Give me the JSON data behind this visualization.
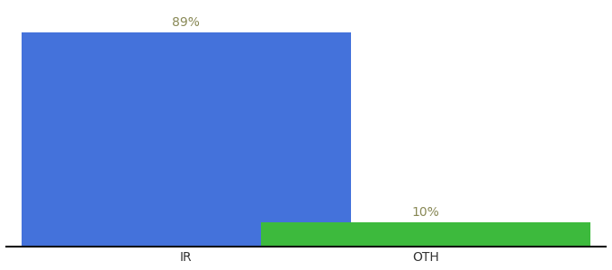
{
  "categories": [
    "IR",
    "OTH"
  ],
  "values": [
    89,
    10
  ],
  "bar_colors": [
    "#4472db",
    "#3dba3d"
  ],
  "labels": [
    "89%",
    "10%"
  ],
  "background_color": "#ffffff",
  "bar_width": 0.55,
  "x_positions": [
    0.3,
    0.7
  ],
  "xlim": [
    0.0,
    1.0
  ],
  "ylim": [
    0,
    100
  ],
  "label_fontsize": 10,
  "tick_fontsize": 10,
  "label_color": "#888855",
  "axis_line_color": "#111111"
}
